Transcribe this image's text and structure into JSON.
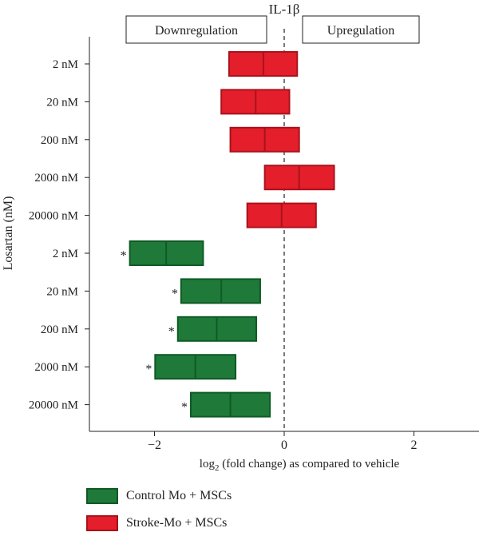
{
  "chart_data": {
    "type": "box",
    "title": "IL-1β",
    "xlabel": "log2 (fold change) as compared to vehicle",
    "ylabel": "Losartan (nM)",
    "xlim": [
      -3,
      3
    ],
    "xticks": [
      -2,
      0,
      2
    ],
    "xtick_labels": [
      "−2",
      "0",
      "2"
    ],
    "reference_line_x": 0,
    "region_labels": {
      "left": "Downregulation",
      "right": "Upregulation"
    },
    "colors": {
      "control": "#1f7a3a",
      "control_border": "#0f5a25",
      "stroke": "#e41e2a",
      "stroke_border": "#a8131c"
    },
    "series": [
      {
        "name": "Stroke-Mo + MSCs",
        "color_key": "stroke",
        "rows": [
          {
            "label": "2 nM",
            "low": -0.85,
            "median": -0.32,
            "high": 0.2,
            "star": ""
          },
          {
            "label": "20 nM",
            "low": -0.97,
            "median": -0.44,
            "high": 0.08,
            "star": ""
          },
          {
            "label": "200 nM",
            "low": -0.83,
            "median": -0.3,
            "high": 0.23,
            "star": ""
          },
          {
            "label": "2000 nM",
            "low": -0.3,
            "median": 0.23,
            "high": 0.77,
            "star": ""
          },
          {
            "label": "20000 nM",
            "low": -0.57,
            "median": -0.04,
            "high": 0.49,
            "star": ""
          }
        ]
      },
      {
        "name": "Control Mo + MSCs",
        "color_key": "control",
        "rows": [
          {
            "label": "2 nM",
            "low": -2.38,
            "median": -1.82,
            "high": -1.25,
            "star": "*"
          },
          {
            "label": "20 nM",
            "low": -1.59,
            "median": -0.97,
            "high": -0.37,
            "star": "*"
          },
          {
            "label": "200 nM",
            "low": -1.64,
            "median": -1.04,
            "high": -0.43,
            "star": "*"
          },
          {
            "label": "2000 nM",
            "low": -1.99,
            "median": -1.37,
            "high": -0.75,
            "star": "*"
          },
          {
            "label": "20000 nM",
            "low": -1.44,
            "median": -0.83,
            "high": -0.22,
            "star": "*"
          }
        ]
      }
    ]
  },
  "legend": [
    {
      "label": "Control Mo + MSCs",
      "color_key": "control"
    },
    {
      "label": "Stroke-Mo + MSCs",
      "color_key": "stroke"
    }
  ]
}
